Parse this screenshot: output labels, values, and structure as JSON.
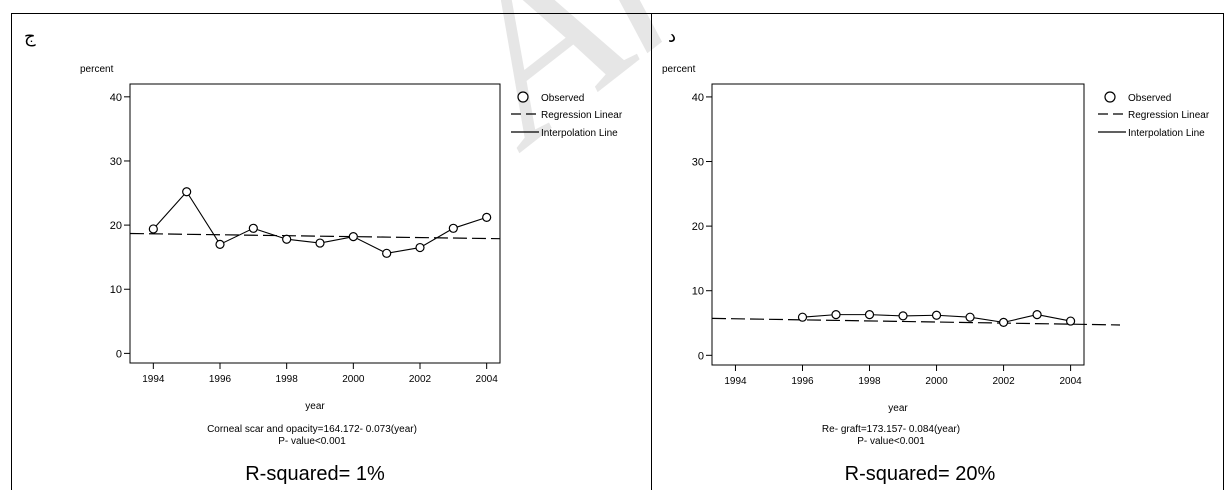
{
  "colors": {
    "line": "#000000",
    "watermark": "#e6e6e6"
  },
  "watermark_text": "Archive of SID",
  "panels": [
    {
      "letter": "ج",
      "ylabel": "percent",
      "xlabel": "year",
      "equation": "Corneal scar and opacity=164.172- 0.073(year)",
      "pvalue": "P- value<0.001",
      "rsquared": "R-squared= 1%",
      "legend": {
        "observed": "Observed",
        "regression": "Regression Linear",
        "interpolation": "Interpolation Line"
      }
    },
    {
      "letter": "د",
      "ylabel": "percent",
      "xlabel": "year",
      "equation": "Re- graft=173.157- 0.084(year)",
      "pvalue": "P- value<0.001",
      "rsquared": "R-squared= 20%",
      "legend": {
        "observed": "Observed",
        "regression": "Regression Linear",
        "interpolation": "Interpolation Line"
      }
    }
  ],
  "chart_data": [
    {
      "type": "line",
      "xlabel": "year",
      "ylabel": "percent",
      "xlim": [
        1993.3,
        2004.4
      ],
      "ylim": [
        -1.5,
        42
      ],
      "xticks": [
        1994,
        1996,
        1998,
        2000,
        2002,
        2004
      ],
      "yticks": [
        0,
        10,
        20,
        30,
        40
      ],
      "x": [
        1994,
        1995,
        1996,
        1997,
        1998,
        1999,
        2000,
        2001,
        2002,
        2003,
        2004
      ],
      "series": [
        {
          "name": "Observed",
          "values": [
            19.4,
            25.2,
            17.0,
            19.5,
            17.8,
            17.2,
            18.2,
            15.6,
            16.5,
            19.5,
            21.2
          ]
        },
        {
          "name": "Regression Linear",
          "values": [
            18.64,
            18.57,
            18.5,
            18.42,
            18.35,
            18.28,
            18.2,
            18.13,
            18.06,
            17.98,
            17.91
          ]
        }
      ],
      "regression": {
        "intercept": 164.172,
        "slope": -0.073
      },
      "legend": "top-right"
    },
    {
      "type": "line",
      "xlabel": "year",
      "ylabel": "percent",
      "xlim": [
        1993.3,
        2004.4
      ],
      "ylim": [
        -1.5,
        42
      ],
      "xticks": [
        1994,
        1996,
        1998,
        2000,
        2002,
        2004
      ],
      "yticks": [
        0,
        10,
        20,
        30,
        40
      ],
      "x": [
        1996,
        1997,
        1998,
        1999,
        2000,
        2001,
        2002,
        2003,
        2004
      ],
      "series": [
        {
          "name": "Observed",
          "values": [
            5.9,
            6.3,
            6.3,
            6.1,
            6.2,
            5.9,
            5.1,
            6.3,
            5.3
          ]
        },
        {
          "name": "Regression Linear",
          "values": [
            5.49,
            5.41,
            5.33,
            5.24,
            5.16,
            5.07,
            4.99,
            4.91,
            4.82
          ]
        }
      ],
      "regression": {
        "intercept": 173.157,
        "slope": -0.084
      },
      "legend": "top-right"
    }
  ]
}
